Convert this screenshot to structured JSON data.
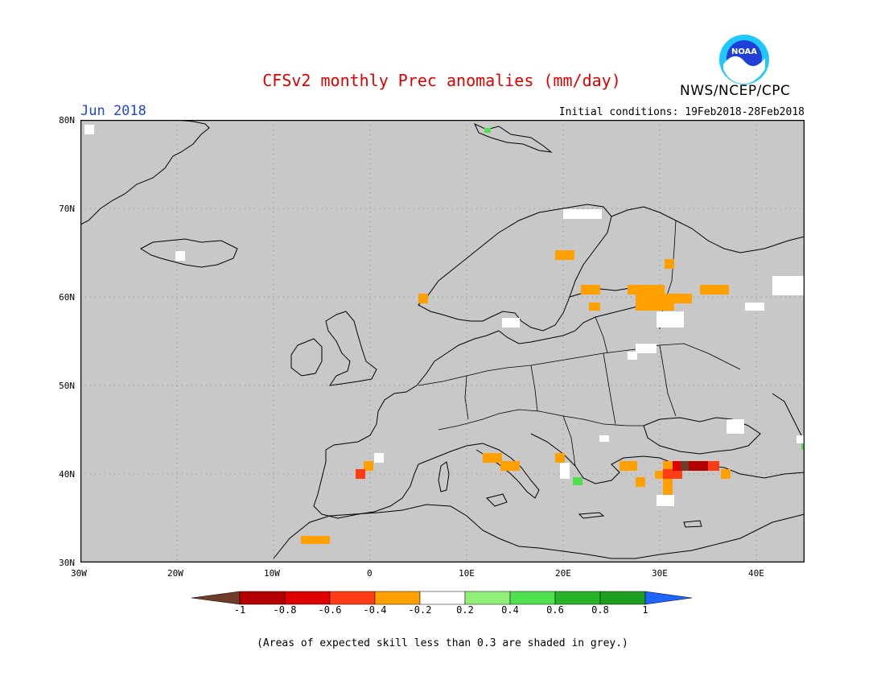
{
  "header": {
    "title": "CFSv2 monthly Prec anomalies (mm/day)",
    "month": "Jun 2018",
    "initial_conditions": "Initial conditions: 19Feb2018-28Feb2018",
    "agency": "NWS/NCEP/CPC",
    "logo_text": "NOAA"
  },
  "map": {
    "lat_labels": [
      "80N",
      "70N",
      "60N",
      "50N",
      "40N",
      "30N"
    ],
    "lon_labels": [
      "30W",
      "20W",
      "10W",
      "0",
      "10E",
      "20E",
      "30E",
      "40E"
    ],
    "background_color": "#c8c8c8"
  },
  "colorbar": {
    "labels": [
      "-1",
      "-0.8",
      "-0.6",
      "-0.4",
      "-0.2",
      "0.2",
      "0.4",
      "0.6",
      "0.8",
      "1"
    ],
    "colors": [
      "#6e3c28",
      "#b40000",
      "#e00000",
      "#ff3c14",
      "#ffa000",
      "#ffffff",
      "#90f078",
      "#50e050",
      "#28b428",
      "#1e9e1e",
      "#1e64ff"
    ]
  },
  "footnote": "(Areas of expected skill less than 0.3 are shaded in grey.)"
}
